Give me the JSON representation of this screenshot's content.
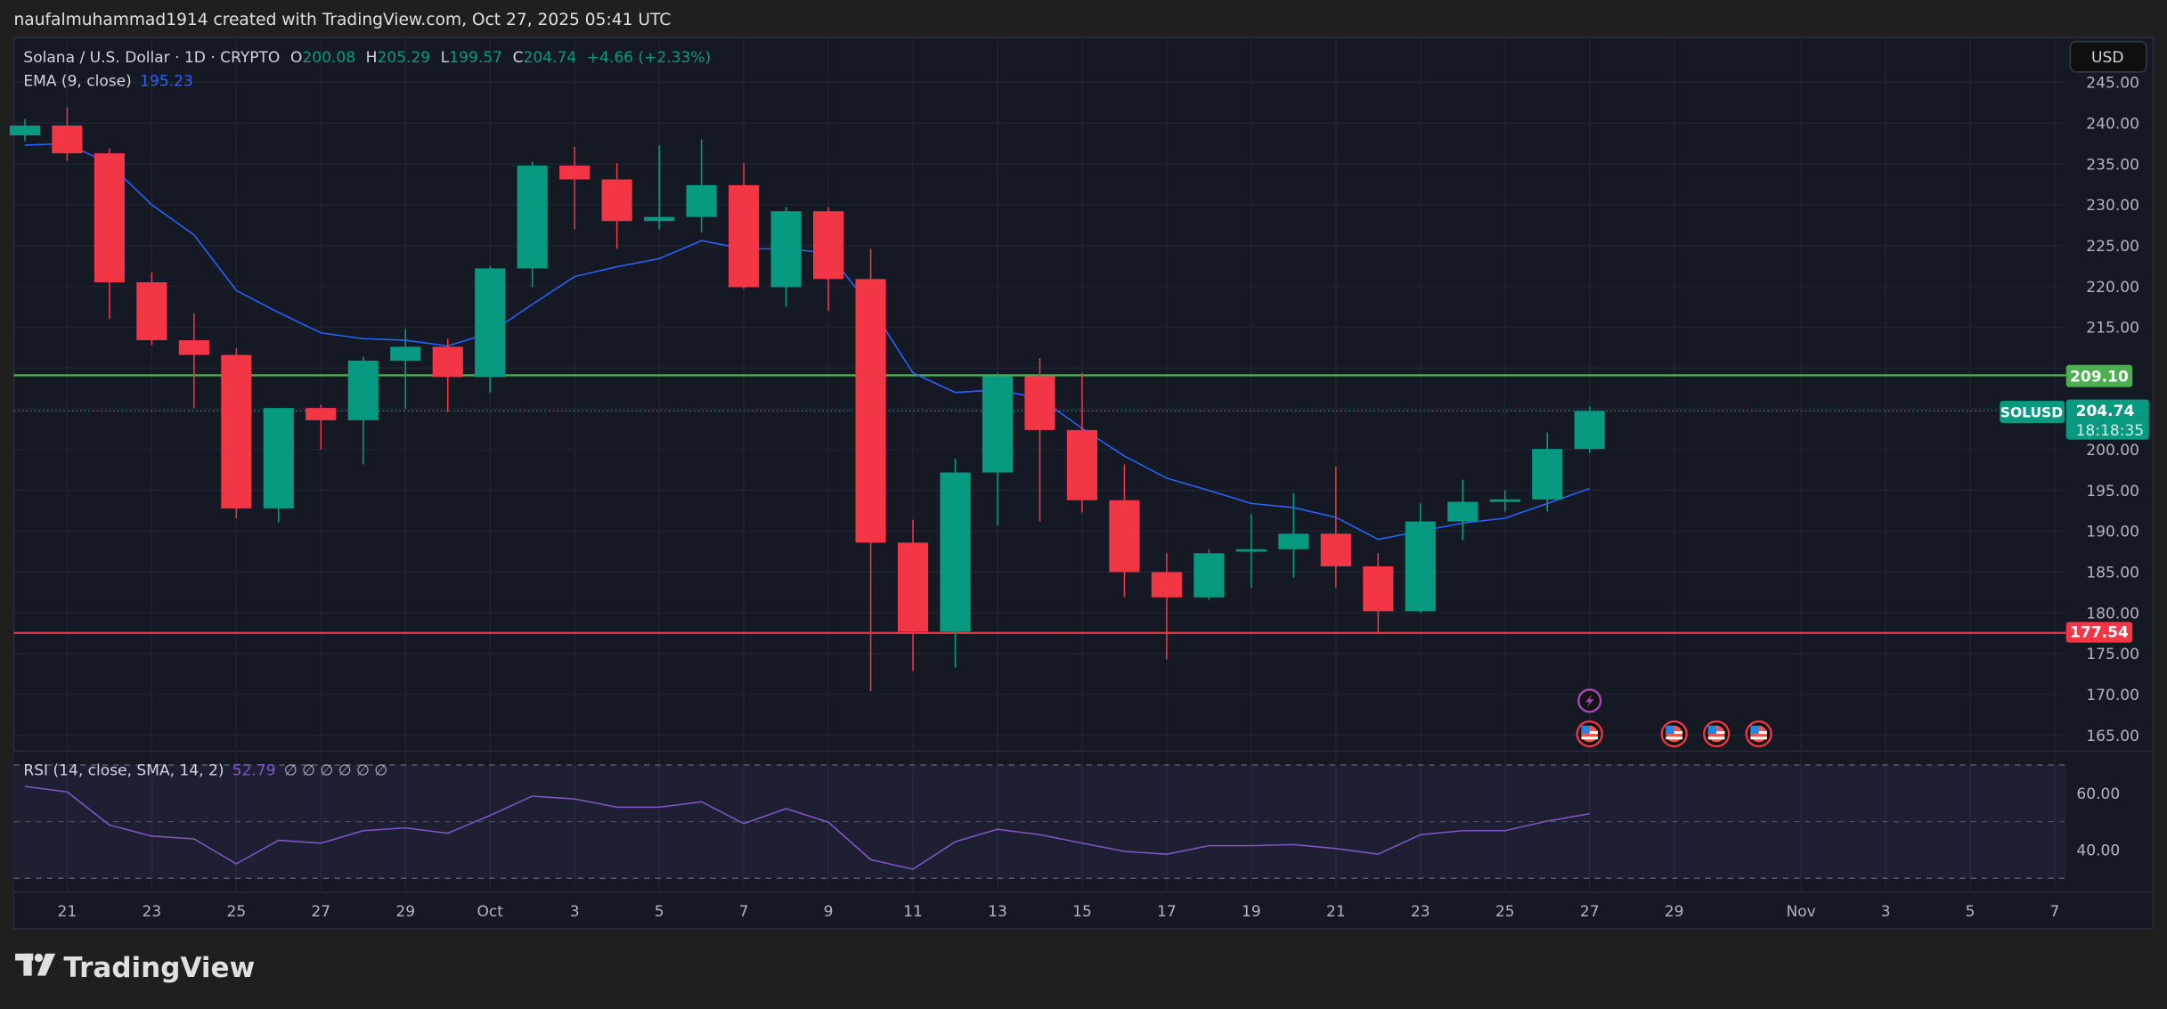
{
  "header": {
    "credit": "naufalmuhammad1914 created with TradingView.com, Oct 27, 2025 05:41 UTC"
  },
  "legend": {
    "symbol": "Solana / U.S. Dollar · 1D · CRYPTO",
    "o_label": "O",
    "o": "200.08",
    "h_label": "H",
    "h": "205.29",
    "l_label": "L",
    "l": "199.57",
    "c_label": "C",
    "c": "204.74",
    "change": "+4.66 (+2.33%)",
    "ema_label": "EMA (9, close)",
    "ema_value": "195.23",
    "rsi_label": "RSI (14, close, SMA, 14, 2)",
    "rsi_value": "52.79",
    "rsi_na": "∅ ∅ ∅ ∅ ∅ ∅"
  },
  "currency_button": "USD",
  "price_labels": {
    "resistance": "209.10",
    "support": "177.54",
    "symbol_tag": "SOLUSD",
    "last": "204.74",
    "countdown": "18:18:35"
  },
  "brand": "TradingView",
  "colors": {
    "up": "#089981",
    "down": "#f23645",
    "ema": "#2962ff",
    "rsi": "#7e57c2",
    "resistance": "#4caf50",
    "support": "#f23645"
  },
  "chart_data": [
    {
      "type": "candlestick",
      "title": "Solana / U.S. Dollar · 1D · CRYPTO",
      "ylim": [
        162,
        247
      ],
      "y_ticks": [
        165,
        170,
        175,
        180,
        185,
        190,
        195,
        200,
        205,
        210,
        215,
        220,
        225,
        230,
        235,
        240,
        245
      ],
      "dates": [
        "Sep 20",
        "Sep 21",
        "Sep 22",
        "Sep 23",
        "Sep 24",
        "Sep 25",
        "Sep 26",
        "Sep 27",
        "Sep 28",
        "Sep 29",
        "Sep 30",
        "Oct 1",
        "Oct 2",
        "Oct 3",
        "Oct 4",
        "Oct 5",
        "Oct 6",
        "Oct 7",
        "Oct 8",
        "Oct 9",
        "Oct 10",
        "Oct 11",
        "Oct 12",
        "Oct 13",
        "Oct 14",
        "Oct 15",
        "Oct 16",
        "Oct 17",
        "Oct 18",
        "Oct 19",
        "Oct 20",
        "Oct 21",
        "Oct 22",
        "Oct 23",
        "Oct 24",
        "Oct 25",
        "Oct 26",
        "Oct 27"
      ],
      "ohlc": [
        [
          238.5,
          240.5,
          237.8,
          239.7
        ],
        [
          239.7,
          241.9,
          235.4,
          236.3
        ],
        [
          236.3,
          236.9,
          216.0,
          220.5
        ],
        [
          220.5,
          221.7,
          212.8,
          213.4
        ],
        [
          213.4,
          216.7,
          205.1,
          211.6
        ],
        [
          211.6,
          212.4,
          191.6,
          192.8
        ],
        [
          192.8,
          205.1,
          191.1,
          205.1
        ],
        [
          205.1,
          205.5,
          200.0,
          203.6
        ],
        [
          203.6,
          211.4,
          198.2,
          210.9
        ],
        [
          210.9,
          214.8,
          205.0,
          212.6
        ],
        [
          212.6,
          213.6,
          204.6,
          208.9
        ],
        [
          208.9,
          222.5,
          207.0,
          222.2
        ],
        [
          222.2,
          235.3,
          219.9,
          234.8
        ],
        [
          234.8,
          237.1,
          227.0,
          233.1
        ],
        [
          233.1,
          235.1,
          224.6,
          228.0
        ],
        [
          228.0,
          237.3,
          227.0,
          228.5
        ],
        [
          228.5,
          238.0,
          226.6,
          232.4
        ],
        [
          232.4,
          235.1,
          219.7,
          219.9
        ],
        [
          219.9,
          229.7,
          217.5,
          229.2
        ],
        [
          229.2,
          229.7,
          217.0,
          220.9
        ],
        [
          220.9,
          224.6,
          170.4,
          188.6
        ],
        [
          188.6,
          191.4,
          172.9,
          177.7
        ],
        [
          177.7,
          198.9,
          173.3,
          197.2
        ],
        [
          197.2,
          209.4,
          190.7,
          209.0
        ],
        [
          209.0,
          211.2,
          191.2,
          202.4
        ],
        [
          202.4,
          209.4,
          192.3,
          193.8
        ],
        [
          193.8,
          198.2,
          181.9,
          185.0
        ],
        [
          185.0,
          187.3,
          174.3,
          181.9
        ],
        [
          181.9,
          187.8,
          181.6,
          187.3
        ],
        [
          187.5,
          192.1,
          183.1,
          187.8
        ],
        [
          187.8,
          194.7,
          184.3,
          189.7
        ],
        [
          189.7,
          197.9,
          183.1,
          185.7
        ],
        [
          185.7,
          187.3,
          177.4,
          180.2
        ],
        [
          180.2,
          193.4,
          180.0,
          191.2
        ],
        [
          191.2,
          196.3,
          188.9,
          193.6
        ],
        [
          193.6,
          195.0,
          192.4,
          193.9
        ],
        [
          193.9,
          202.1,
          192.4,
          200.08
        ],
        [
          200.08,
          205.29,
          199.57,
          204.74
        ]
      ],
      "ema9": [
        237.3,
        237.5,
        235.0,
        230.0,
        226.3,
        219.5,
        216.8,
        214.3,
        213.6,
        213.4,
        212.7,
        214.3,
        217.8,
        221.2,
        222.4,
        223.4,
        225.6,
        224.6,
        224.6,
        224.1,
        217.5,
        209.4,
        207.0,
        207.3,
        206.3,
        202.6,
        199.2,
        196.5,
        195.0,
        193.4,
        192.9,
        191.7,
        189.0,
        190.0,
        191.0,
        191.6,
        193.4,
        195.23
      ],
      "hlines": [
        209.1,
        177.54
      ]
    },
    {
      "type": "line",
      "title": "RSI (14, close, SMA, 14, 2)",
      "ylim": [
        25,
        75
      ],
      "y_ticks": [
        40,
        60
      ],
      "bands": [
        30,
        50,
        70
      ],
      "rsi": [
        62.4,
        60.5,
        48.8,
        44.9,
        43.9,
        35.1,
        43.4,
        42.4,
        46.8,
        47.8,
        45.9,
        52.2,
        59.0,
        58.0,
        55.1,
        55.1,
        57.0,
        49.3,
        54.6,
        49.8,
        36.6,
        33.2,
        42.9,
        47.3,
        45.4,
        42.4,
        39.5,
        38.5,
        41.5,
        41.5,
        41.9,
        40.5,
        38.5,
        45.4,
        46.8,
        46.8,
        50.2,
        52.79
      ]
    }
  ],
  "x_ticks": [
    {
      "label": "21",
      "day": 1
    },
    {
      "label": "23",
      "day": 3
    },
    {
      "label": "25",
      "day": 5
    },
    {
      "label": "27",
      "day": 7
    },
    {
      "label": "29",
      "day": 9
    },
    {
      "label": "Oct",
      "day": 11
    },
    {
      "label": "3",
      "day": 13
    },
    {
      "label": "5",
      "day": 15
    },
    {
      "label": "7",
      "day": 17
    },
    {
      "label": "9",
      "day": 19
    },
    {
      "label": "11",
      "day": 21
    },
    {
      "label": "13",
      "day": 23
    },
    {
      "label": "15",
      "day": 25
    },
    {
      "label": "17",
      "day": 27
    },
    {
      "label": "19",
      "day": 29
    },
    {
      "label": "21",
      "day": 31
    },
    {
      "label": "23",
      "day": 33
    },
    {
      "label": "25",
      "day": 35
    },
    {
      "label": "27",
      "day": 37
    },
    {
      "label": "29",
      "day": 39
    },
    {
      "label": "Nov",
      "day": 42
    },
    {
      "label": "3",
      "day": 44
    },
    {
      "label": "5",
      "day": 46
    },
    {
      "label": "7",
      "day": 48
    }
  ],
  "events": [
    {
      "icon": "lightning-icon",
      "day": 37,
      "row": 0
    },
    {
      "icon": "us-flag-icon",
      "day": 37,
      "row": 1
    },
    {
      "icon": "us-flag-icon",
      "day": 39,
      "row": 1
    },
    {
      "icon": "us-flag-icon",
      "day": 40,
      "row": 1
    },
    {
      "icon": "us-flag-icon",
      "day": 41,
      "row": 1
    }
  ]
}
